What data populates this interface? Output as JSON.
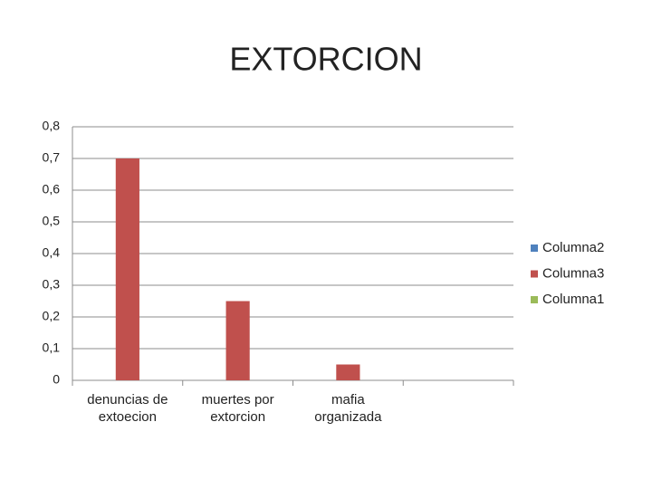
{
  "chart_data": {
    "type": "bar",
    "title": "EXTORCION",
    "categories": [
      "denuncias de extoecion",
      "muertes por extorcion",
      "mafia organizada",
      null
    ],
    "series": [
      {
        "name": "Columna2",
        "color": "#4f81bd",
        "values": [
          null,
          null,
          null,
          null
        ]
      },
      {
        "name": "Columna3",
        "color": "#c0504d",
        "values": [
          0.7,
          0.25,
          0.05,
          null
        ]
      },
      {
        "name": "Columna1",
        "color": "#9bbb59",
        "values": [
          null,
          null,
          null,
          null
        ]
      }
    ],
    "ylim": [
      0,
      0.8
    ],
    "yticks": [
      0,
      {
        "value": 0.1,
        "label": "0,1"
      },
      {
        "value": 0.2,
        "label": "0,2"
      },
      {
        "value": 0.3,
        "label": "0,3"
      },
      {
        "value": 0.4,
        "label": "0,4"
      },
      {
        "value": 0.5,
        "label": "0,5"
      },
      {
        "value": 0.6,
        "label": "0,6"
      },
      {
        "value": 0.7,
        "label": "0,7"
      },
      {
        "value": 0.8,
        "label": "0,8"
      }
    ],
    "grid": true,
    "legend": "right"
  }
}
